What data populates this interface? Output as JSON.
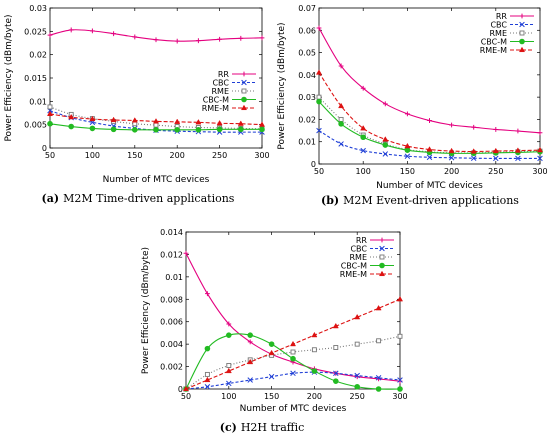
{
  "chart_data": [
    {
      "type": "line",
      "caption_tag": "(a)",
      "caption": "M2M Time-driven applications",
      "xlabel": "Number of MTC devices",
      "ylabel": "Power Efficiency (dBm/byte)",
      "xlim": [
        50,
        300
      ],
      "ylim": [
        0,
        0.03
      ],
      "xticks": [
        50,
        100,
        150,
        200,
        250,
        300
      ],
      "yticks": [
        0,
        0.005,
        0.01,
        0.015,
        0.02,
        0.025,
        0.03
      ],
      "ytick_labels": [
        "0",
        "0.005",
        "0.01",
        "0.015",
        "0.02",
        "0.025",
        "0.03"
      ],
      "legend_position": "center-right",
      "x": [
        50,
        75,
        100,
        125,
        150,
        175,
        200,
        225,
        250,
        275,
        300
      ],
      "series": [
        {
          "name": "RR",
          "color": "#e4007f",
          "marker": "plus",
          "dash": "",
          "values": [
            0.0242,
            0.0253,
            0.0251,
            0.0245,
            0.0238,
            0.0232,
            0.0229,
            0.023,
            0.0233,
            0.0235,
            0.0236
          ]
        },
        {
          "name": "CBC",
          "color": "#1f3fd6",
          "marker": "x",
          "dash": "3,2",
          "values": [
            0.008,
            0.0065,
            0.0055,
            0.0047,
            0.0042,
            0.0038,
            0.0036,
            0.0035,
            0.0034,
            0.0034,
            0.0034
          ]
        },
        {
          "name": "RME",
          "color": "#777777",
          "marker": "square",
          "dash": "1,2",
          "values": [
            0.0088,
            0.0072,
            0.0063,
            0.0057,
            0.0052,
            0.0049,
            0.0046,
            0.0044,
            0.0043,
            0.0042,
            0.0041
          ]
        },
        {
          "name": "CBC-M",
          "color": "#22bb22",
          "marker": "circle",
          "dash": "",
          "values": [
            0.0052,
            0.0046,
            0.0042,
            0.004,
            0.0039,
            0.0039,
            0.0039,
            0.0039,
            0.004,
            0.004,
            0.004
          ]
        },
        {
          "name": "RME-M",
          "color": "#dd1111",
          "marker": "triangle",
          "dash": "4,2",
          "values": [
            0.0073,
            0.0066,
            0.0062,
            0.006,
            0.0059,
            0.0057,
            0.0056,
            0.0055,
            0.0053,
            0.0052,
            0.005
          ]
        }
      ]
    },
    {
      "type": "line",
      "caption_tag": "(b)",
      "caption": "M2M Event-driven applications",
      "xlabel": "Number of MTC devices",
      "ylabel": "Power Efficiency (dBm/byte)",
      "xlim": [
        50,
        300
      ],
      "ylim": [
        0,
        0.07
      ],
      "xticks": [
        50,
        100,
        150,
        200,
        250,
        300
      ],
      "yticks": [
        0,
        0.01,
        0.02,
        0.03,
        0.04,
        0.05,
        0.06,
        0.07
      ],
      "ytick_labels": [
        "0",
        "0.01",
        "0.02",
        "0.03",
        "0.04",
        "0.05",
        "0.06",
        "0.07"
      ],
      "legend_position": "top-right",
      "x": [
        50,
        75,
        100,
        125,
        150,
        175,
        200,
        225,
        250,
        275,
        300
      ],
      "series": [
        {
          "name": "RR",
          "color": "#e4007f",
          "marker": "plus",
          "dash": "",
          "values": [
            0.061,
            0.044,
            0.034,
            0.027,
            0.0225,
            0.0195,
            0.0175,
            0.0165,
            0.0155,
            0.0148,
            0.014
          ]
        },
        {
          "name": "CBC",
          "color": "#1f3fd6",
          "marker": "x",
          "dash": "3,2",
          "values": [
            0.015,
            0.009,
            0.006,
            0.0045,
            0.0035,
            0.003,
            0.0028,
            0.0026,
            0.0025,
            0.0025,
            0.0025
          ]
        },
        {
          "name": "RME",
          "color": "#777777",
          "marker": "square",
          "dash": "1,2",
          "values": [
            0.03,
            0.02,
            0.013,
            0.009,
            0.0065,
            0.0055,
            0.005,
            0.005,
            0.0052,
            0.0055,
            0.0058
          ]
        },
        {
          "name": "CBC-M",
          "color": "#22bb22",
          "marker": "circle",
          "dash": "",
          "values": [
            0.028,
            0.018,
            0.012,
            0.0085,
            0.0062,
            0.0052,
            0.0048,
            0.0048,
            0.005,
            0.0052,
            0.0055
          ]
        },
        {
          "name": "RME-M",
          "color": "#dd1111",
          "marker": "triangle",
          "dash": "4,2",
          "values": [
            0.041,
            0.026,
            0.016,
            0.011,
            0.008,
            0.0065,
            0.0058,
            0.0056,
            0.0058,
            0.006,
            0.0062
          ]
        }
      ]
    },
    {
      "type": "line",
      "caption_tag": "(c)",
      "caption": "H2H traffic",
      "xlabel": "Number of MTC devices",
      "ylabel": "Power Efficiency (dBm/byte)",
      "xlim": [
        50,
        300
      ],
      "ylim": [
        0,
        0.014
      ],
      "xticks": [
        50,
        100,
        150,
        200,
        250,
        300
      ],
      "yticks": [
        0,
        0.002,
        0.004,
        0.006,
        0.008,
        0.01,
        0.012,
        0.014
      ],
      "ytick_labels": [
        "0",
        "0.002",
        "0.004",
        "0.006",
        "0.008",
        "0.01",
        "0.012",
        "0.014"
      ],
      "legend_position": "top-right",
      "x": [
        50,
        75,
        100,
        125,
        150,
        175,
        200,
        225,
        250,
        275,
        300
      ],
      "series": [
        {
          "name": "RR",
          "color": "#e4007f",
          "marker": "plus",
          "dash": "",
          "values": [
            0.0121,
            0.0085,
            0.0058,
            0.0042,
            0.0031,
            0.0024,
            0.0018,
            0.0014,
            0.0011,
            0.0009,
            0.0007
          ]
        },
        {
          "name": "CBC",
          "color": "#1f3fd6",
          "marker": "x",
          "dash": "3,2",
          "values": [
            0.0,
            0.0002,
            0.0005,
            0.0008,
            0.0011,
            0.0014,
            0.0015,
            0.0014,
            0.0012,
            0.001,
            0.0008
          ]
        },
        {
          "name": "RME",
          "color": "#777777",
          "marker": "square",
          "dash": "1,2",
          "values": [
            0.0,
            0.0013,
            0.0021,
            0.0026,
            0.003,
            0.0033,
            0.0035,
            0.0037,
            0.004,
            0.0043,
            0.0047
          ]
        },
        {
          "name": "CBC-M",
          "color": "#22bb22",
          "marker": "circle",
          "dash": "",
          "values": [
            0.0,
            0.0036,
            0.0048,
            0.0048,
            0.004,
            0.0027,
            0.0016,
            0.0007,
            0.0002,
            0.0,
            0.0
          ]
        },
        {
          "name": "RME-M",
          "color": "#dd1111",
          "marker": "triangle",
          "dash": "4,2",
          "values": [
            0.0,
            0.0008,
            0.0016,
            0.0024,
            0.0032,
            0.004,
            0.0048,
            0.0056,
            0.0064,
            0.0072,
            0.008
          ]
        }
      ]
    }
  ]
}
